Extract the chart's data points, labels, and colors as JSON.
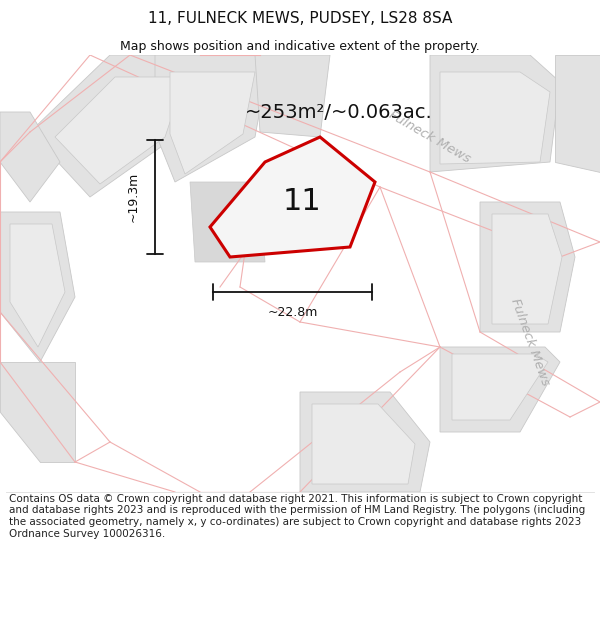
{
  "title": "11, FULNECK MEWS, PUDSEY, LS28 8SA",
  "subtitle": "Map shows position and indicative extent of the property.",
  "footnote": "Contains OS data © Crown copyright and database right 2021. This information is subject to Crown copyright and database rights 2023 and is reproduced with the permission of HM Land Registry. The polygons (including the associated geometry, namely x, y co-ordinates) are subject to Crown copyright and database rights 2023 Ordnance Survey 100026316.",
  "area_label": "~253m²/~0.063ac.",
  "width_label": "~22.8m",
  "height_label": "~19.3m",
  "plot_number": "11",
  "bg_color": "#ffffff",
  "map_bg": "#f9f9f9",
  "building_fill": "#e2e2e2",
  "building_edge": "#c8c8c8",
  "road_line": "#f0b0b0",
  "plot_stroke": "#cc0000",
  "plot_fill": "#f5f5f5",
  "dim_color": "#111111",
  "street_label_color": "#b0b0b0",
  "title_fontsize": 11,
  "subtitle_fontsize": 9,
  "footnote_fontsize": 7.5,
  "area_fontsize": 14,
  "number_fontsize": 22,
  "dim_fontsize": 9
}
